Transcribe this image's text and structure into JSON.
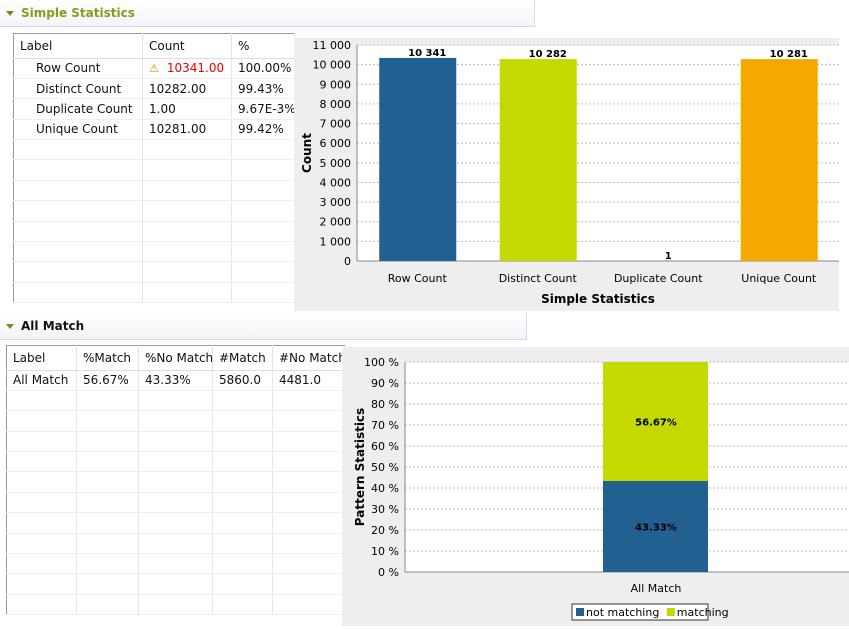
{
  "section1": {
    "title": "Simple Statistics",
    "columns": [
      "Label",
      "Count",
      "%"
    ],
    "rows": [
      {
        "label": "Row Count",
        "count": "10341.00",
        "pct": "100.00%",
        "warning": true
      },
      {
        "label": "Distinct Count",
        "count": "10282.00",
        "pct": "99.43%"
      },
      {
        "label": "Duplicate Count",
        "count": "1.00",
        "pct": "9.67E-3%"
      },
      {
        "label": "Unique Count",
        "count": "10281.00",
        "pct": "99.42%"
      }
    ]
  },
  "section2": {
    "title": "All Match",
    "columns": [
      "Label",
      "%Match",
      "%No Match",
      "#Match",
      "#No Match"
    ],
    "rows": [
      {
        "label": "All Match",
        "match_pct": "56.67%",
        "nomatch_pct": "43.33%",
        "match": "5860.0",
        "nomatch": "4481.0"
      }
    ]
  },
  "chart_data": [
    {
      "type": "bar",
      "xlabel": "Simple Statistics",
      "ylabel": "Count",
      "ylim": [
        0,
        11000
      ],
      "yticks": [
        "0",
        "1 000",
        "2 000",
        "3 000",
        "4 000",
        "5 000",
        "6 000",
        "7 000",
        "8 000",
        "9 000",
        "10 000",
        "11 000"
      ],
      "categories": [
        "Row Count",
        "Distinct Count",
        "Duplicate Count",
        "Unique Count"
      ],
      "values": [
        10341,
        10282,
        1,
        10281
      ],
      "data_labels": [
        "10 341",
        "10 282",
        "1",
        "10 281"
      ],
      "colors": [
        "#236092",
        "#c5d800",
        "#cccccc",
        "#f5a800"
      ],
      "grid": true
    },
    {
      "type": "bar",
      "stacked": true,
      "ylabel": "Pattern Statistics",
      "ylim": [
        0,
        100
      ],
      "yticks": [
        "0 %",
        "10 %",
        "20 %",
        "30 %",
        "40 %",
        "50 %",
        "60 %",
        "70 %",
        "80 %",
        "90 %",
        "100 %"
      ],
      "categories": [
        "All Match"
      ],
      "series": [
        {
          "name": "not matching",
          "values": [
            43.33
          ],
          "label": "43.33%",
          "color": "#236092"
        },
        {
          "name": "matching",
          "values": [
            56.67
          ],
          "label": "56.67%",
          "color": "#c5d800"
        }
      ],
      "legend": "bottom",
      "grid": true
    }
  ]
}
